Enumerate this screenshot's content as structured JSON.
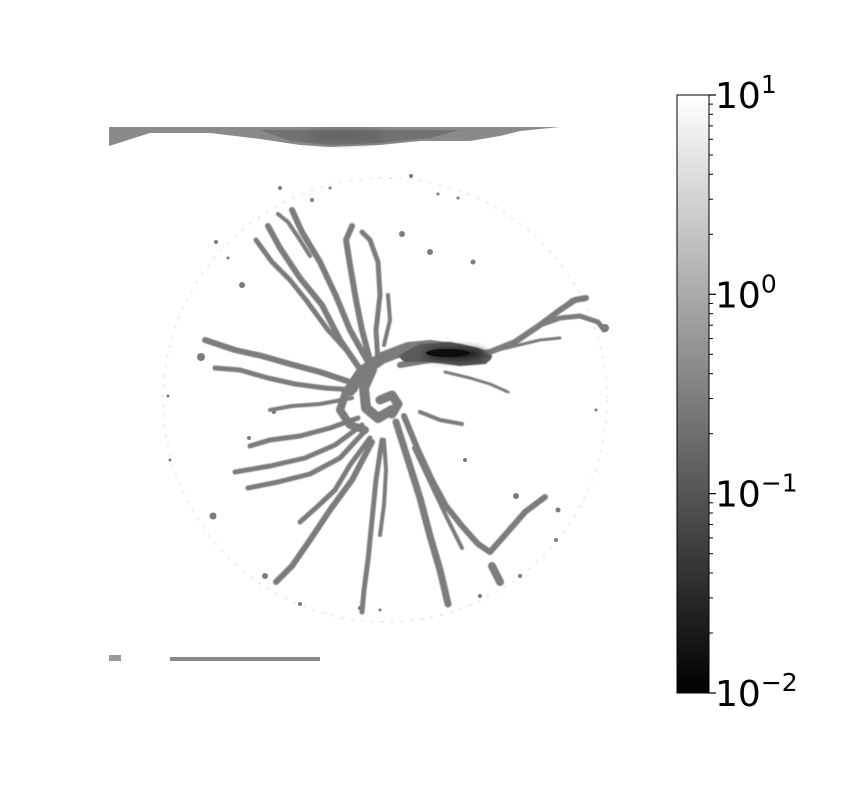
{
  "chart_data": {
    "type": "heatmap",
    "title": "",
    "xlabel": "",
    "ylabel": "",
    "axes_visible": false,
    "colormap": "gray",
    "color_scale": "log",
    "color_range": [
      0.01,
      10
    ],
    "colorbar": {
      "location": "right",
      "ticks": [
        {
          "value": 10,
          "base": "10",
          "exponent": "1"
        },
        {
          "value": 1,
          "base": "10",
          "exponent": "0"
        },
        {
          "value": 0.1,
          "base": "10",
          "exponent": "−1"
        },
        {
          "value": 0.01,
          "base": "10",
          "exponent": "−2"
        }
      ]
    },
    "background_value": 10,
    "field_description_values": {
      "channel_network": 0.3,
      "top_band": 0.4,
      "dark_core_min": 0.01
    }
  }
}
